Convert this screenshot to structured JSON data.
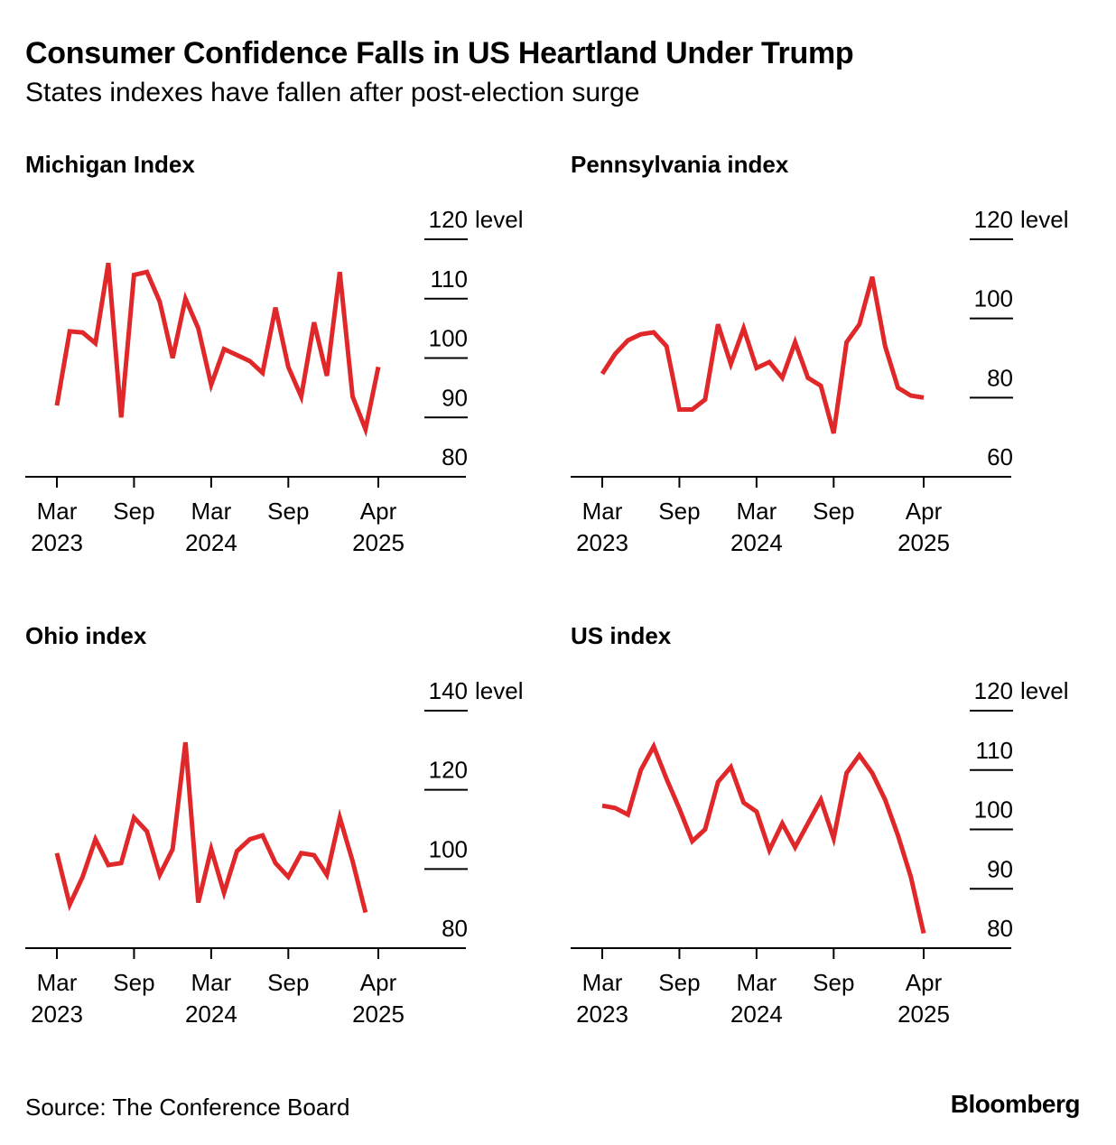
{
  "title": "Consumer Confidence Falls in US Heartland Under Trump",
  "subtitle": "States indexes have fallen after post-election surge",
  "source": "Source: The Conference Board",
  "brand": "Bloomberg",
  "colors": {
    "line": "#e0282a",
    "axis": "#000000",
    "text": "#000000",
    "background": "#ffffff"
  },
  "chart_data": [
    {
      "type": "line",
      "title": "Michigan Index",
      "unit_label": "level",
      "ylim": [
        80,
        120
      ],
      "yticks": [
        80,
        90,
        100,
        110,
        120
      ],
      "x_range": [
        "2023-03",
        "2025-04"
      ],
      "xticks": [
        {
          "month_index": 0,
          "line1": "Mar",
          "line2": "2023"
        },
        {
          "month_index": 6,
          "line1": "Sep",
          "line2": ""
        },
        {
          "month_index": 12,
          "line1": "Mar",
          "line2": "2024"
        },
        {
          "month_index": 18,
          "line1": "Sep",
          "line2": ""
        },
        {
          "month_index": 25,
          "line1": "Apr",
          "line2": "2025"
        }
      ],
      "series": [
        {
          "name": "Michigan Index",
          "values": [
            92,
            104.5,
            104.3,
            102.5,
            116,
            90,
            114,
            114.5,
            109.5,
            100,
            110,
            105,
            95.5,
            101.5,
            100.5,
            99.5,
            97.5,
            108.5,
            98.5,
            93.5,
            106,
            97,
            114.5,
            93.5,
            88,
            98.5
          ]
        }
      ],
      "grid": false
    },
    {
      "type": "line",
      "title": "Pennsylvania index",
      "unit_label": "level",
      "ylim": [
        60,
        120
      ],
      "yticks": [
        60,
        80,
        100,
        120
      ],
      "x_range": [
        "2023-03",
        "2025-04"
      ],
      "xticks": [
        {
          "month_index": 0,
          "line1": "Mar",
          "line2": "2023"
        },
        {
          "month_index": 6,
          "line1": "Sep",
          "line2": ""
        },
        {
          "month_index": 12,
          "line1": "Mar",
          "line2": "2024"
        },
        {
          "month_index": 18,
          "line1": "Sep",
          "line2": ""
        },
        {
          "month_index": 25,
          "line1": "Apr",
          "line2": "2025"
        }
      ],
      "series": [
        {
          "name": "Pennsylvania index",
          "values": [
            86,
            91,
            94.5,
            96,
            96.5,
            93,
            77,
            77,
            79.5,
            98.5,
            88.5,
            97.5,
            87.5,
            89,
            85,
            94,
            85,
            83,
            71,
            94,
            98.5,
            110.5,
            93,
            82.5,
            80.5,
            80
          ]
        }
      ],
      "grid": false
    },
    {
      "type": "line",
      "title": "Ohio index",
      "unit_label": "level",
      "ylim": [
        80,
        140
      ],
      "yticks": [
        80,
        100,
        120,
        140
      ],
      "x_range": [
        "2023-03",
        "2025-04"
      ],
      "xticks": [
        {
          "month_index": 0,
          "line1": "Mar",
          "line2": "2023"
        },
        {
          "month_index": 6,
          "line1": "Sep",
          "line2": ""
        },
        {
          "month_index": 12,
          "line1": "Mar",
          "line2": "2024"
        },
        {
          "month_index": 18,
          "line1": "Sep",
          "line2": ""
        },
        {
          "month_index": 25,
          "line1": "Apr",
          "line2": "2025"
        }
      ],
      "series": [
        {
          "name": "Ohio index",
          "values": [
            104,
            91,
            98,
            107.5,
            101,
            101.5,
            113,
            109.5,
            98.5,
            105,
            132,
            91.5,
            105,
            94,
            104.5,
            107.5,
            108.5,
            101.5,
            98,
            104,
            103.5,
            98.5,
            113,
            102,
            89,
            null
          ]
        }
      ],
      "grid": false
    },
    {
      "type": "line",
      "title": "US index",
      "unit_label": "level",
      "ylim": [
        80,
        120
      ],
      "yticks": [
        80,
        90,
        100,
        110,
        120
      ],
      "x_range": [
        "2023-03",
        "2025-04"
      ],
      "xticks": [
        {
          "month_index": 0,
          "line1": "Mar",
          "line2": "2023"
        },
        {
          "month_index": 6,
          "line1": "Sep",
          "line2": ""
        },
        {
          "month_index": 12,
          "line1": "Mar",
          "line2": "2024"
        },
        {
          "month_index": 18,
          "line1": "Sep",
          "line2": ""
        },
        {
          "month_index": 25,
          "line1": "Apr",
          "line2": "2025"
        }
      ],
      "series": [
        {
          "name": "US index",
          "values": [
            104,
            103.6,
            102.5,
            110,
            114,
            108.5,
            103.5,
            98,
            100,
            108,
            110.5,
            104.5,
            103,
            96.5,
            101,
            97,
            101,
            105,
            98.5,
            109.5,
            112.5,
            109.5,
            105,
            99,
            92,
            82.5
          ]
        }
      ],
      "grid": false
    }
  ]
}
